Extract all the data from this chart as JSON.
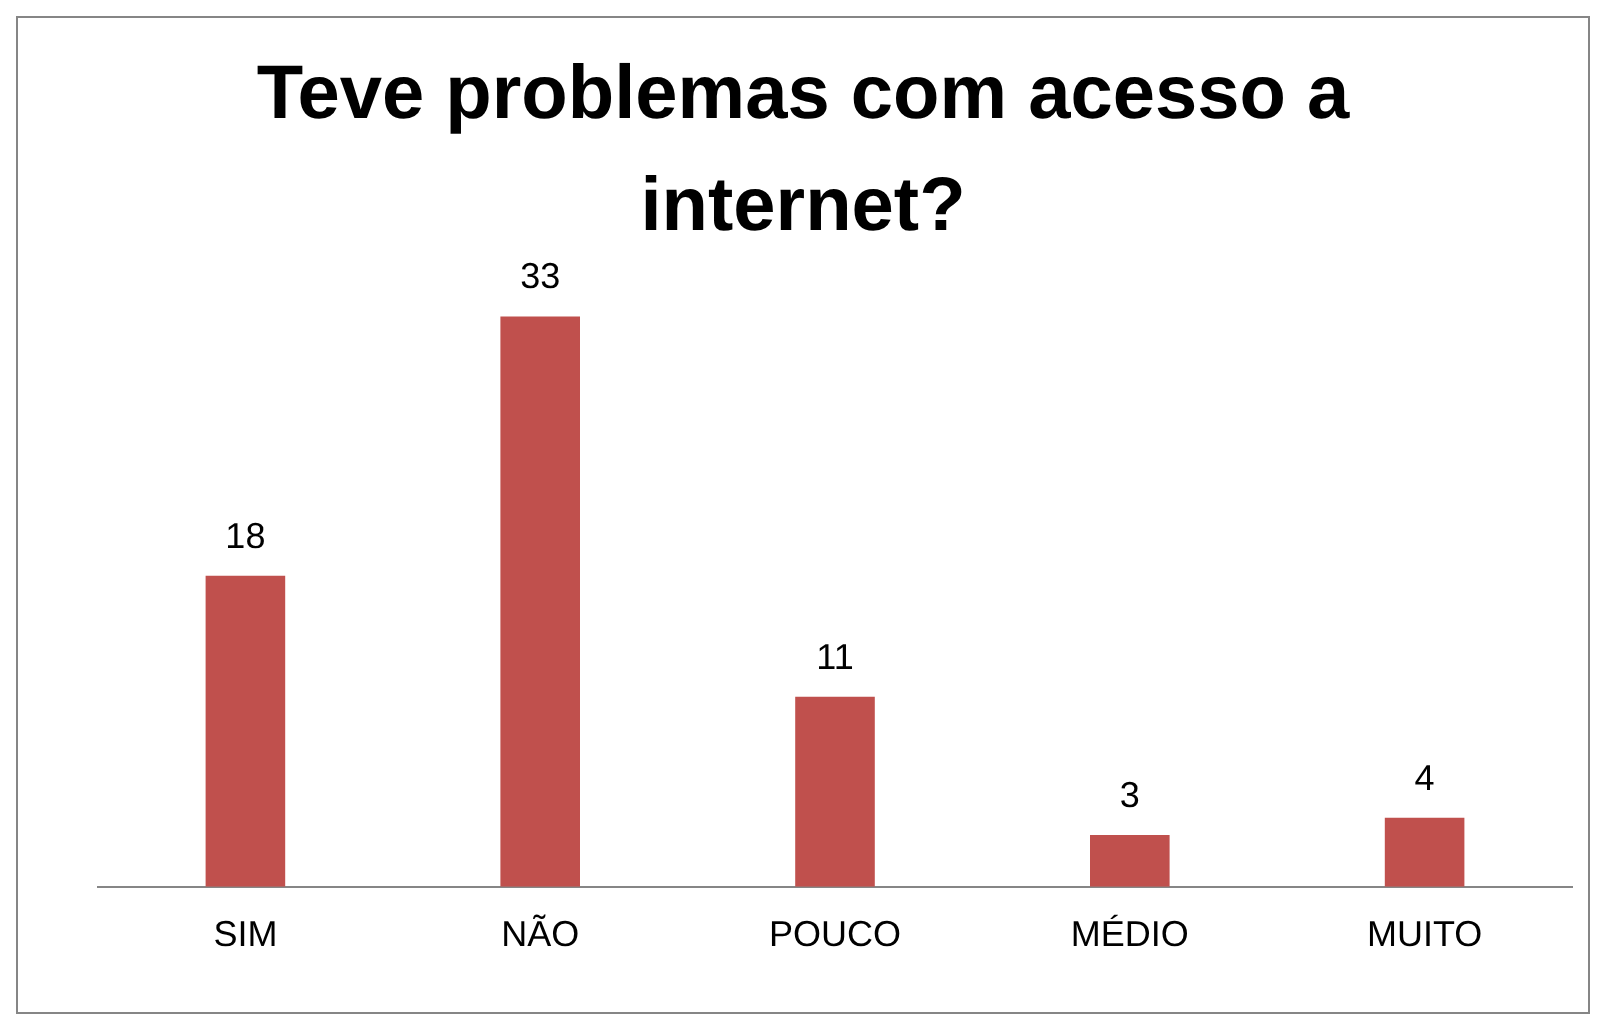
{
  "chart_data": {
    "type": "bar",
    "title": "Teve problemas com acesso a internet?",
    "categories": [
      "SIM",
      "NÃO",
      "POUCO",
      "MÉDIO",
      "MUITO"
    ],
    "values": [
      18,
      33,
      11,
      3,
      4
    ],
    "color": "#c0504d",
    "data_labels": true,
    "tick_labels": "x",
    "grid": false,
    "legend": false
  }
}
